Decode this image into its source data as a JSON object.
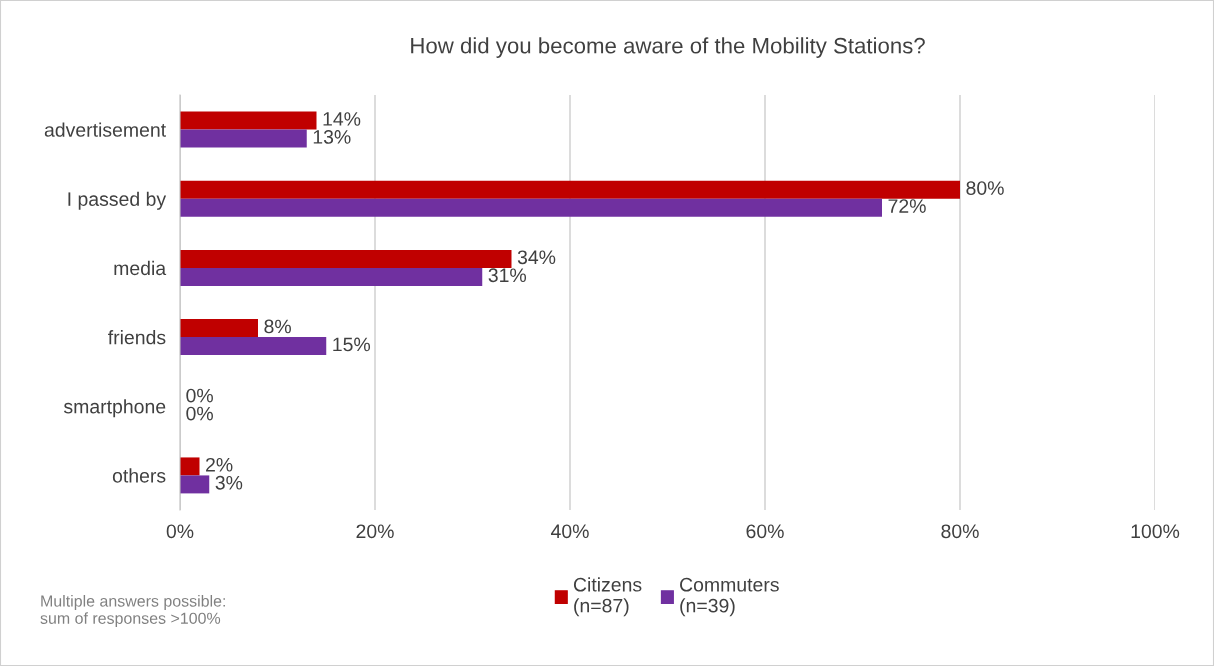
{
  "chart_data": {
    "type": "bar",
    "orientation": "horizontal",
    "title": "How did you become aware of the Mobility Stations?",
    "categories": [
      "advertisement",
      "I passed by",
      "media",
      "friends",
      "smartphone",
      "others"
    ],
    "series": [
      {
        "name": "Citizens\n(n=87)",
        "color": "#c00000",
        "values": [
          14,
          80,
          34,
          8,
          0,
          2
        ],
        "value_labels": [
          "14%",
          "80%",
          "34%",
          "8%",
          "0%",
          "2%"
        ]
      },
      {
        "name": "Commuters\n(n=39)",
        "color": "#7030a0",
        "values": [
          13,
          72,
          31,
          15,
          0,
          3
        ],
        "value_labels": [
          "13%",
          "72%",
          "31%",
          "15%",
          "0%",
          "3%"
        ]
      }
    ],
    "xlim": [
      0,
      100
    ],
    "xticks": [
      {
        "value": 0,
        "label": "0%"
      },
      {
        "value": 20,
        "label": "20%"
      },
      {
        "value": 40,
        "label": "40%"
      },
      {
        "value": 60,
        "label": "60%"
      },
      {
        "value": 80,
        "label": "80%"
      },
      {
        "value": 100,
        "label": "100%"
      }
    ],
    "grid": "x",
    "legend": "bottom",
    "annotations": [
      "Multiple answers possible:\nsum of responses >100%"
    ]
  }
}
